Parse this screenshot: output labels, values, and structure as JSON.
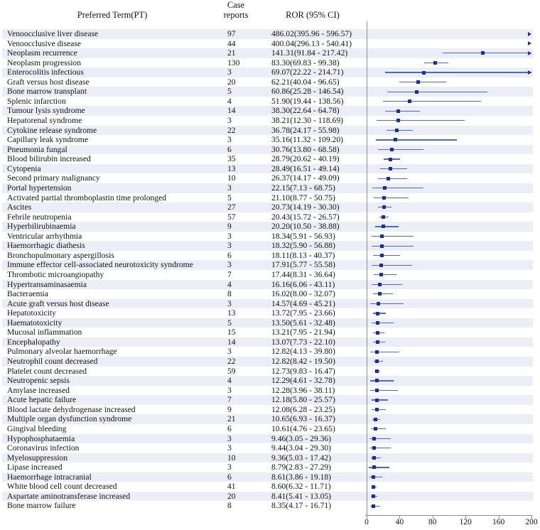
{
  "header": {
    "pt": "Preferred Term(PT)",
    "case_line1": "Case",
    "case_line2": "reports",
    "ror": "ROR (95% CI)"
  },
  "colors": {
    "marker": "#1c2f9a",
    "ci_line": "#4a6ac8",
    "band": "#eceef7",
    "axis": "#8c8c8c",
    "text": "#111111"
  },
  "chart_data": {
    "type": "forest",
    "title": "",
    "xlabel": "",
    "ylabel": "",
    "xlim": [
      0,
      200
    ],
    "xticks": [
      0,
      40,
      80,
      120,
      160,
      200
    ],
    "grid": false,
    "legend_position": "none",
    "columns": [
      "Preferred Term(PT)",
      "Case reports",
      "ROR (95% CI)"
    ],
    "offscale_marker": "right-arrow",
    "rows": [
      {
        "pt": "Venoocclusive liver disease",
        "case_reports": 97,
        "ror_label": "486.02(395.96 - 596.57)",
        "ror": 486.02,
        "lo": 395.96,
        "hi": 596.57
      },
      {
        "pt": "Venoocclusive disease",
        "case_reports": 44,
        "ror_label": "400.04(296.13 - 540.41)",
        "ror": 400.04,
        "lo": 296.13,
        "hi": 540.41
      },
      {
        "pt": "Neoplasm recurrence",
        "case_reports": 21,
        "ror_label": "141.31(91.84 - 217.42)",
        "ror": 141.31,
        "lo": 91.84,
        "hi": 217.42
      },
      {
        "pt": "Neoplasm progression",
        "case_reports": 130,
        "ror_label": "83.30(69.83 - 99.38)",
        "ror": 83.3,
        "lo": 69.83,
        "hi": 99.38
      },
      {
        "pt": "Enterocolitis infectious",
        "case_reports": 3,
        "ror_label": "69.07(22.22 - 214.71)",
        "ror": 69.07,
        "lo": 22.22,
        "hi": 214.71
      },
      {
        "pt": "Graft versus host disease",
        "case_reports": 20,
        "ror_label": "62.21(40.04 - 96.65)",
        "ror": 62.21,
        "lo": 40.04,
        "hi": 96.65
      },
      {
        "pt": "Bone marrow transplant",
        "case_reports": 5,
        "ror_label": "60.86(25.28 - 146.54)",
        "ror": 60.86,
        "lo": 25.28,
        "hi": 146.54
      },
      {
        "pt": "Splenic infarction",
        "case_reports": 4,
        "ror_label": "51.90(19.44 - 138.56)",
        "ror": 51.9,
        "lo": 19.44,
        "hi": 138.56
      },
      {
        "pt": "Tumour lysis syndrome",
        "case_reports": 14,
        "ror_label": "38.30(22.64 - 64.78)",
        "ror": 38.3,
        "lo": 22.64,
        "hi": 64.78
      },
      {
        "pt": "Hepatorenal syndrome",
        "case_reports": 3,
        "ror_label": "38.21(12.30 - 118.69)",
        "ror": 38.21,
        "lo": 12.3,
        "hi": 118.69
      },
      {
        "pt": "Cytokine release syndrome",
        "case_reports": 22,
        "ror_label": "36.78(24.17 - 55.98)",
        "ror": 36.78,
        "lo": 24.17,
        "hi": 55.98
      },
      {
        "pt": "Capillary leak syndrome",
        "case_reports": 3,
        "ror_label": "35.16(11.32 - 109.20)",
        "ror": 35.16,
        "lo": 11.32,
        "hi": 109.2
      },
      {
        "pt": "Pneumonia fungal",
        "case_reports": 6,
        "ror_label": "30.76(13.80 - 68.58)",
        "ror": 30.76,
        "lo": 13.8,
        "hi": 68.58
      },
      {
        "pt": "Blood bilirubin increased",
        "case_reports": 35,
        "ror_label": "28.79(20.62 - 40.19)",
        "ror": 28.79,
        "lo": 20.62,
        "hi": 40.19
      },
      {
        "pt": "Cytopenia",
        "case_reports": 13,
        "ror_label": "28.49(16.51 - 49.14)",
        "ror": 28.49,
        "lo": 16.51,
        "hi": 49.14
      },
      {
        "pt": "Second primary malignancy",
        "case_reports": 10,
        "ror_label": "26.37(14.17 - 49.09)",
        "ror": 26.37,
        "lo": 14.17,
        "hi": 49.09
      },
      {
        "pt": "Portal hypertension",
        "case_reports": 3,
        "ror_label": "22.15(7.13 - 68.75)",
        "ror": 22.15,
        "lo": 7.13,
        "hi": 68.75
      },
      {
        "pt": "Activated partial thromboplastin time prolonged",
        "case_reports": 5,
        "ror_label": "21.10(8.77 - 50.75)",
        "ror": 21.1,
        "lo": 8.77,
        "hi": 50.75
      },
      {
        "pt": "Ascites",
        "case_reports": 27,
        "ror_label": "20.73(14.19 - 30.30)",
        "ror": 20.73,
        "lo": 14.19,
        "hi": 30.3
      },
      {
        "pt": "Febrile neutropenia",
        "case_reports": 57,
        "ror_label": "20.43(15.72 - 26.57)",
        "ror": 20.43,
        "lo": 15.72,
        "hi": 26.57
      },
      {
        "pt": "Hyperbilirubinaemia",
        "case_reports": 9,
        "ror_label": "20.20(10.50 - 38.88)",
        "ror": 20.2,
        "lo": 10.5,
        "hi": 38.88
      },
      {
        "pt": "Ventricular arrhythmia",
        "case_reports": 3,
        "ror_label": "18.34(5.91 - 56.93)",
        "ror": 18.34,
        "lo": 5.91,
        "hi": 56.93
      },
      {
        "pt": "Haemorrhagic diathesis",
        "case_reports": 3,
        "ror_label": "18.32(5.90 - 56.88)",
        "ror": 18.32,
        "lo": 5.9,
        "hi": 56.88
      },
      {
        "pt": "Bronchopulmonary aspergillosis",
        "case_reports": 6,
        "ror_label": "18.11(8.13 - 40.37)",
        "ror": 18.11,
        "lo": 8.13,
        "hi": 40.37
      },
      {
        "pt": "Immune effector cell-associated neurotoxicity syndrome",
        "case_reports": 3,
        "ror_label": "17.91(5.77 - 55.58)",
        "ror": 17.91,
        "lo": 5.77,
        "hi": 55.58
      },
      {
        "pt": "Thrombotic microangiopathy",
        "case_reports": 7,
        "ror_label": "17.44(8.31 - 36.64)",
        "ror": 17.44,
        "lo": 8.31,
        "hi": 36.64
      },
      {
        "pt": "Hypertransaminasaemia",
        "case_reports": 4,
        "ror_label": "16.16(6.06 - 43.11)",
        "ror": 16.16,
        "lo": 6.06,
        "hi": 43.11
      },
      {
        "pt": "Bacteraemia",
        "case_reports": 8,
        "ror_label": "16.02(8.00 - 32.07)",
        "ror": 16.02,
        "lo": 8.0,
        "hi": 32.07
      },
      {
        "pt": "Acute graft versus host disease",
        "case_reports": 3,
        "ror_label": "14.57(4.69 - 45.21)",
        "ror": 14.57,
        "lo": 4.69,
        "hi": 45.21
      },
      {
        "pt": "Hepatotoxicity",
        "case_reports": 13,
        "ror_label": "13.72(7.95 - 23.66)",
        "ror": 13.72,
        "lo": 7.95,
        "hi": 23.66
      },
      {
        "pt": "Haematotoxicity",
        "case_reports": 5,
        "ror_label": "13.50(5.61 - 32.48)",
        "ror": 13.5,
        "lo": 5.61,
        "hi": 32.48
      },
      {
        "pt": "Mucosal inflammation",
        "case_reports": 15,
        "ror_label": "13.21(7.95 - 21.94)",
        "ror": 13.21,
        "lo": 7.95,
        "hi": 21.94
      },
      {
        "pt": "Encephalopathy",
        "case_reports": 14,
        "ror_label": "13.07(7.73 - 22.10)",
        "ror": 13.07,
        "lo": 7.73,
        "hi": 22.1
      },
      {
        "pt": "Pulmonary alveolar haemorrhage",
        "case_reports": 3,
        "ror_label": "12.82(4.13 - 39.80)",
        "ror": 12.82,
        "lo": 4.13,
        "hi": 39.8
      },
      {
        "pt": "Neutrophil count decreased",
        "case_reports": 22,
        "ror_label": "12.82(8.42 - 19.50)",
        "ror": 12.82,
        "lo": 8.42,
        "hi": 19.5
      },
      {
        "pt": "Platelet count decreased",
        "case_reports": 59,
        "ror_label": "12.73(9.83 - 16.47)",
        "ror": 12.73,
        "lo": 9.83,
        "hi": 16.47
      },
      {
        "pt": "Neutropenic sepsis",
        "case_reports": 4,
        "ror_label": "12.29(4.61 - 32.78)",
        "ror": 12.29,
        "lo": 4.61,
        "hi": 32.78
      },
      {
        "pt": "Amylase increased",
        "case_reports": 3,
        "ror_label": "12.28(3.96 - 38.11)",
        "ror": 12.28,
        "lo": 3.96,
        "hi": 38.11
      },
      {
        "pt": "Acute hepatic failure",
        "case_reports": 7,
        "ror_label": "12.18(5.80 - 25.57)",
        "ror": 12.18,
        "lo": 5.8,
        "hi": 25.57
      },
      {
        "pt": "Blood lactate dehydrogenase increased",
        "case_reports": 9,
        "ror_label": "12.08(6.28 - 23.25)",
        "ror": 12.08,
        "lo": 6.28,
        "hi": 23.25
      },
      {
        "pt": "Multiple organ dysfunction syndrome",
        "case_reports": 21,
        "ror_label": "10.65(6.93 - 16.37)",
        "ror": 10.65,
        "lo": 6.93,
        "hi": 16.37
      },
      {
        "pt": "Gingival bleeding",
        "case_reports": 6,
        "ror_label": "10.61(4.76 - 23.65)",
        "ror": 10.61,
        "lo": 4.76,
        "hi": 23.65
      },
      {
        "pt": "Hypophosphataemia",
        "case_reports": 3,
        "ror_label": "9.46(3.05 - 29.36)",
        "ror": 9.46,
        "lo": 3.05,
        "hi": 29.36
      },
      {
        "pt": "Coronavirus infection",
        "case_reports": 3,
        "ror_label": "9.44(3.04 - 29.30)",
        "ror": 9.44,
        "lo": 3.04,
        "hi": 29.3
      },
      {
        "pt": "Myelosuppression",
        "case_reports": 10,
        "ror_label": "9.36(5.03 - 17.42)",
        "ror": 9.36,
        "lo": 5.03,
        "hi": 17.42
      },
      {
        "pt": "Lipase increased",
        "case_reports": 3,
        "ror_label": "8.79(2.83 - 27.29)",
        "ror": 8.79,
        "lo": 2.83,
        "hi": 27.29
      },
      {
        "pt": "Haemorrhage intracranial",
        "case_reports": 6,
        "ror_label": "8.61(3.86 - 19.18)",
        "ror": 8.61,
        "lo": 3.86,
        "hi": 19.18
      },
      {
        "pt": "White blood cell count decreased",
        "case_reports": 41,
        "ror_label": "8.60(6.32 - 11.71)",
        "ror": 8.6,
        "lo": 6.32,
        "hi": 11.71
      },
      {
        "pt": "Aspartate aminotransferase increased",
        "case_reports": 20,
        "ror_label": "8.41(5.41 - 13.05)",
        "ror": 8.41,
        "lo": 5.41,
        "hi": 13.05
      },
      {
        "pt": "Bone marrow failure",
        "case_reports": 8,
        "ror_label": "8.35(4.17 - 16.71)",
        "ror": 8.35,
        "lo": 4.17,
        "hi": 16.71
      }
    ]
  }
}
